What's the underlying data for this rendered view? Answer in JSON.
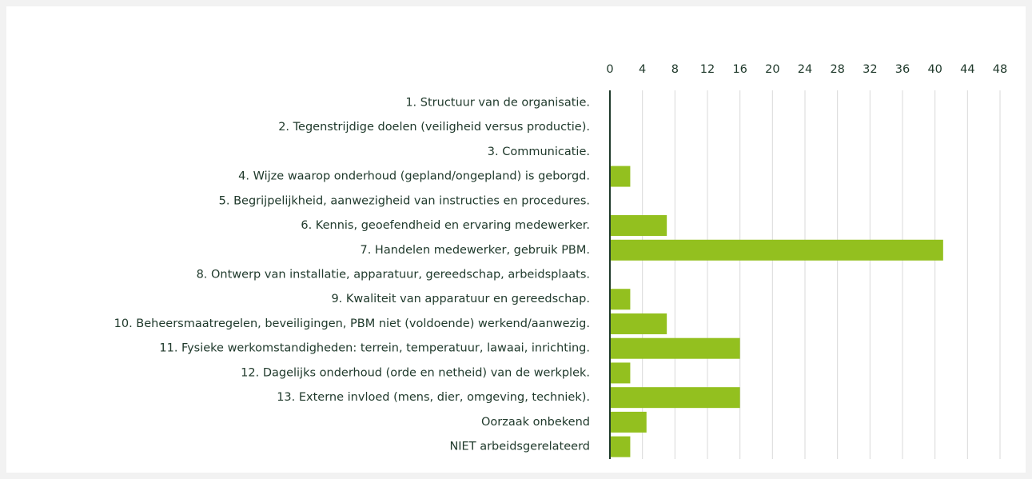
{
  "chart_data": {
    "type": "bar",
    "orientation": "horizontal",
    "categories": [
      "1. Structuur van de organisatie.",
      "2. Tegenstrijdige doelen (veiligheid versus productie).",
      "3. Communicatie.",
      "4. Wijze waarop onderhoud (gepland/ongepland) is geborgd.",
      "5. Begrijpelijkheid, aanwezigheid van instructies en procedures.",
      "6. Kennis, geoefendheid en ervaring medewerker.",
      "7. Handelen medewerker, gebruik PBM.",
      "8. Ontwerp van installatie, apparatuur, gereedschap, arbeidsplaats.",
      "9. Kwaliteit van apparatuur en gereedschap.",
      "10. Beheersmaatregelen, beveiligingen, PBM niet (voldoende) werkend/aanwezig.",
      "11. Fysieke werkomstandigheden: terrein, temperatuur, lawaai, inrichting.",
      "12. Dagelijks onderhoud (orde en netheid) van de werkplek.",
      "13. Externe invloed (mens, dier, omgeving, techniek).",
      "Oorzaak onbekend",
      "NIET arbeidsgerelateerd"
    ],
    "values": [
      0,
      0,
      0,
      2.5,
      0,
      7,
      41,
      0,
      2.5,
      7,
      16,
      2.5,
      16,
      4.5,
      2.5
    ],
    "color": "#93c01f",
    "xlim": [
      0,
      48
    ],
    "xticks": [
      0,
      4,
      8,
      12,
      16,
      20,
      24,
      28,
      32,
      36,
      40,
      44,
      48
    ],
    "grid": true
  }
}
